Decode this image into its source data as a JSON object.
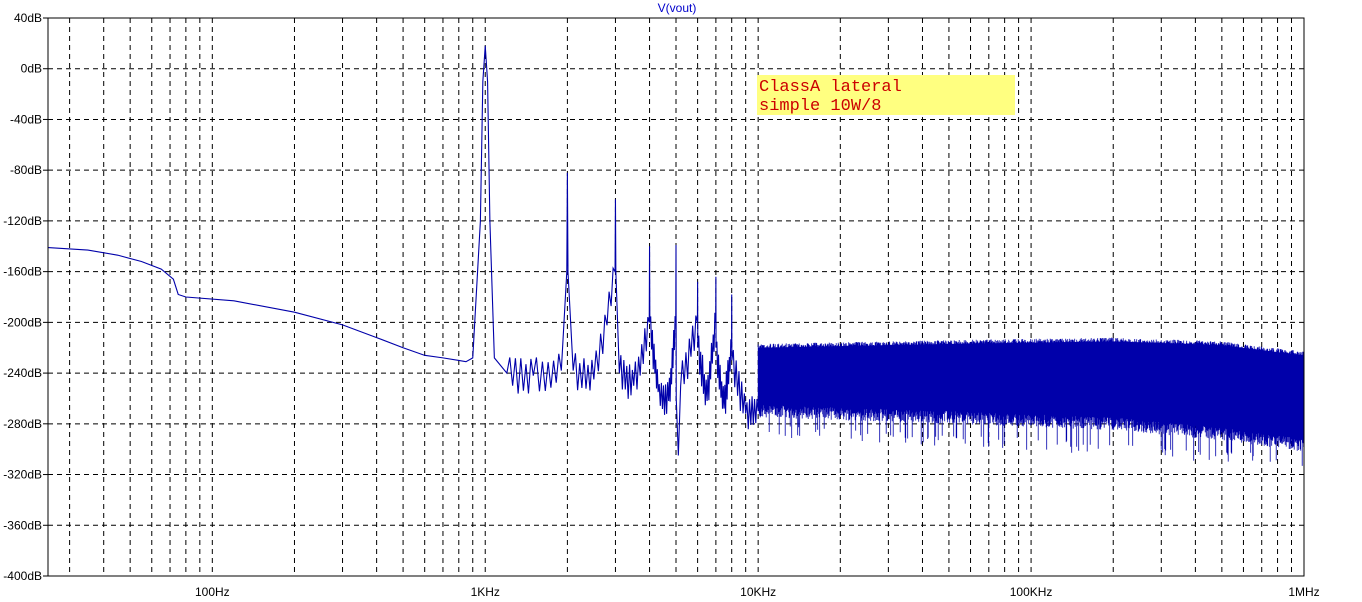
{
  "colors": {
    "trace": "#0000aa",
    "title": "#0000cc",
    "grid": "#000000",
    "note_bg": "#ffff80",
    "note_text": "#cc0000",
    "background": "#ffffff"
  },
  "chart_data": {
    "type": "line",
    "title": "V(vout)",
    "xlabel": "",
    "ylabel": "",
    "x_scale": "log",
    "xlim": [
      25,
      1000000
    ],
    "ylim": [
      -400,
      40
    ],
    "grid": true,
    "y_ticks": [
      "40dB",
      "0dB",
      "-40dB",
      "-80dB",
      "-120dB",
      "-160dB",
      "-200dB",
      "-240dB",
      "-280dB",
      "-320dB",
      "-360dB",
      "-400dB"
    ],
    "x_ticks": [
      {
        "value": 100,
        "label": "100Hz"
      },
      {
        "value": 1000,
        "label": "1KHz"
      },
      {
        "value": 10000,
        "label": "10KHz"
      },
      {
        "value": 100000,
        "label": "100KHz"
      },
      {
        "value": 1000000,
        "label": "1MHz"
      }
    ],
    "annotation": [
      "ClassA lateral",
      "simple 10W/8"
    ],
    "series": [
      {
        "points": [
          [
            25,
            -141
          ],
          [
            35,
            -143
          ],
          [
            45,
            -147
          ],
          [
            55,
            -152
          ],
          [
            65,
            -158
          ],
          [
            72,
            -166
          ],
          [
            75,
            -178
          ],
          [
            80,
            -180
          ],
          [
            120,
            -183
          ],
          [
            200,
            -192
          ],
          [
            300,
            -202
          ],
          [
            400,
            -212
          ],
          [
            500,
            -220
          ],
          [
            600,
            -226
          ],
          [
            700,
            -228
          ],
          [
            800,
            -230
          ],
          [
            850,
            -231
          ],
          [
            900,
            -228
          ],
          [
            960,
            -120
          ],
          [
            980,
            -10
          ],
          [
            1000,
            18
          ],
          [
            1020,
            -10
          ],
          [
            1040,
            -120
          ],
          [
            1080,
            -228
          ],
          [
            1200,
            -240
          ],
          [
            1500,
            -242
          ],
          [
            1900,
            -238
          ],
          [
            1990,
            -160
          ],
          [
            2000,
            -82
          ],
          [
            2010,
            -160
          ],
          [
            2100,
            -238
          ],
          [
            2500,
            -245
          ],
          [
            2990,
            -160
          ],
          [
            3000,
            -103
          ],
          [
            3010,
            -160
          ],
          [
            3100,
            -240
          ],
          [
            3500,
            -250
          ],
          [
            3990,
            -200
          ],
          [
            4000,
            -140
          ],
          [
            4010,
            -200
          ],
          [
            4300,
            -255
          ],
          [
            4700,
            -262
          ],
          [
            4990,
            -200
          ],
          [
            5000,
            -139
          ],
          [
            5010,
            -260
          ],
          [
            5100,
            -305
          ],
          [
            5200,
            -250
          ],
          [
            5990,
            -200
          ],
          [
            6000,
            -168
          ],
          [
            6010,
            -220
          ],
          [
            6500,
            -262
          ],
          [
            6990,
            -200
          ],
          [
            7000,
            -164
          ],
          [
            7010,
            -220
          ],
          [
            7500,
            -268
          ],
          [
            7990,
            -220
          ],
          [
            8000,
            -178
          ],
          [
            8010,
            -230
          ],
          [
            9000,
            -272
          ],
          [
            10000,
            -270
          ]
        ]
      }
    ],
    "noise_band": {
      "start": 10000,
      "end": 1000000,
      "upper": [
        [
          10000,
          -217
        ],
        [
          50000,
          -214
        ],
        [
          200000,
          -212
        ],
        [
          500000,
          -215
        ],
        [
          1000000,
          -223
        ]
      ],
      "lower": [
        [
          10000,
          -275
        ],
        [
          50000,
          -280
        ],
        [
          200000,
          -285
        ],
        [
          500000,
          -293
        ],
        [
          1000000,
          -302
        ]
      ],
      "spike_min": [
        [
          10000,
          -290
        ],
        [
          200000,
          -305
        ],
        [
          1000000,
          -315
        ]
      ]
    }
  }
}
